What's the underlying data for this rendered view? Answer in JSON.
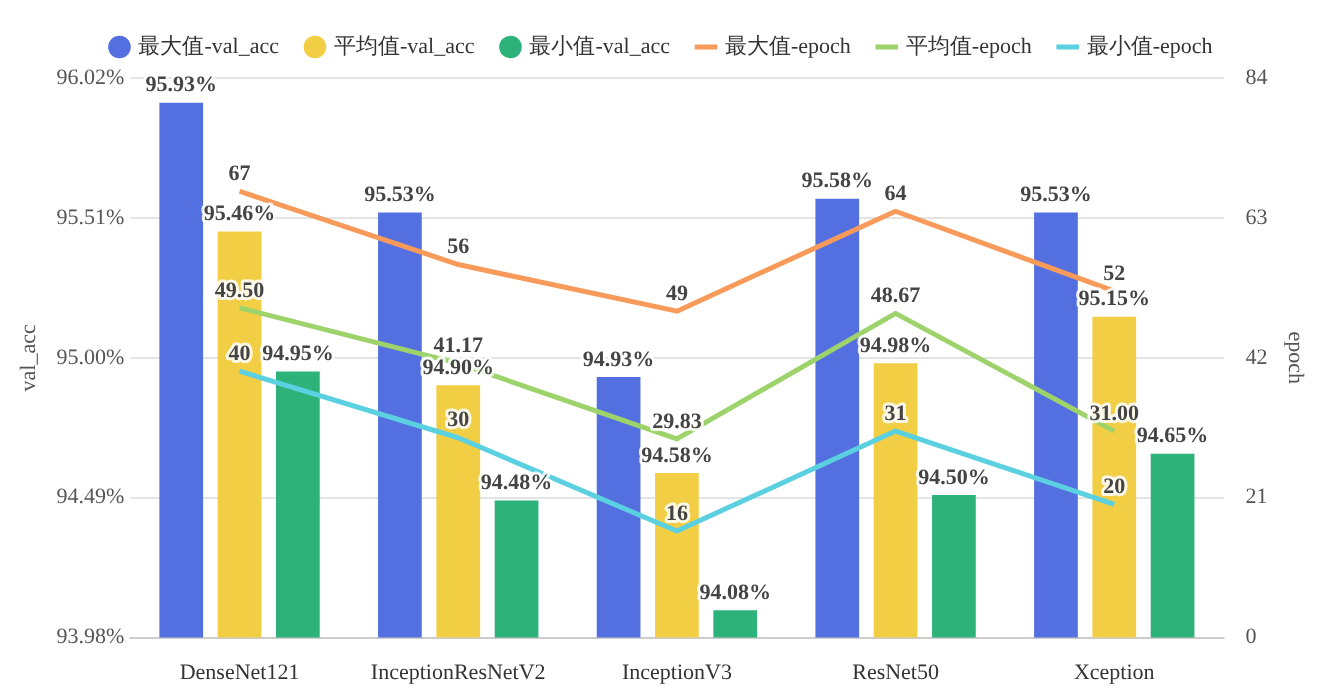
{
  "chart_data": {
    "type": "bar",
    "categories": [
      "DenseNet121",
      "InceptionResNetV2",
      "InceptionV3",
      "ResNet50",
      "Xception"
    ],
    "series": [
      {
        "name": "最大值-val_acc",
        "color": "#5470e0",
        "values": [
          95.93,
          95.53,
          94.93,
          95.58,
          95.53
        ],
        "value_labels": [
          "95.93%",
          "95.53%",
          "94.93%",
          "95.58%",
          "95.53%"
        ]
      },
      {
        "name": "平均值-val_acc",
        "color": "#f2ce45",
        "values": [
          95.46,
          94.9,
          94.58,
          94.98,
          95.15
        ],
        "value_labels": [
          "95.46%",
          "94.90%",
          "94.58%",
          "94.98%",
          "95.15%"
        ]
      },
      {
        "name": "最小值-val_acc",
        "color": "#2db37a",
        "values": [
          94.95,
          94.48,
          94.08,
          94.5,
          94.65
        ],
        "value_labels": [
          "94.95%",
          "94.48%",
          "94.08%",
          "94.50%",
          "94.65%"
        ]
      },
      {
        "name": "最大值-epoch",
        "color": "#f79a5a",
        "type": "line",
        "axis": "y2",
        "values": [
          67,
          56,
          49,
          64,
          52
        ],
        "value_labels": [
          "67",
          "56",
          "49",
          "64",
          "52"
        ]
      },
      {
        "name": "平均值-epoch",
        "color": "#9dd36a",
        "type": "line",
        "axis": "y2",
        "values": [
          49.5,
          41.17,
          29.83,
          48.67,
          31.0
        ],
        "value_labels": [
          "49.50",
          "41.17",
          "29.83",
          "48.67",
          "31.00"
        ]
      },
      {
        "name": "最小值-epoch",
        "color": "#5bd0e0",
        "type": "line",
        "axis": "y2",
        "values": [
          40,
          30,
          16,
          31,
          20
        ],
        "value_labels": [
          "40",
          "30",
          "16",
          "31",
          "20"
        ]
      }
    ],
    "ylabel": "val_acc",
    "y2label": "epoch",
    "ylim": [
      93.98,
      96.02
    ],
    "yticks": [
      {
        "value": 93.98,
        "label": "93.98%"
      },
      {
        "value": 94.49,
        "label": "94.49%"
      },
      {
        "value": 95.0,
        "label": "95.00%"
      },
      {
        "value": 95.51,
        "label": "95.51%"
      },
      {
        "value": 96.02,
        "label": "96.02%"
      }
    ],
    "y2lim": [
      0,
      84
    ],
    "y2ticks": [
      0,
      21,
      42,
      63,
      84
    ],
    "grid": "y",
    "legend": "top",
    "marker": "none",
    "line_style": "solid"
  }
}
